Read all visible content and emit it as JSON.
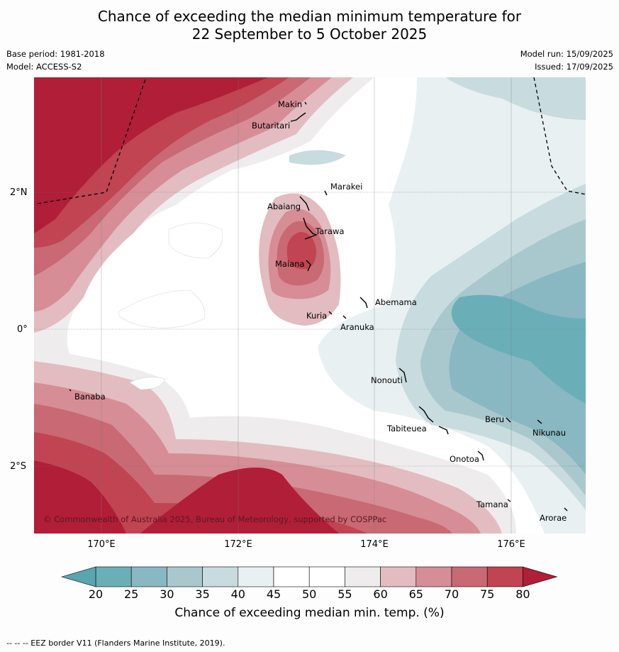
{
  "header": {
    "title_line1": "Chance of exceeding the median minimum temperature for",
    "title_line2": "22 September to 5 October 2025",
    "base_period": "Base period: 1981-2018",
    "model": "Model: ACCESS-S2",
    "model_run": "Model run: 15/09/2025",
    "issued": "Issued: 17/09/2025"
  },
  "map": {
    "lat_labels": [
      "2°N",
      "0°",
      "2°S"
    ],
    "lon_labels": [
      "170°E",
      "172°E",
      "174°E",
      "176°E"
    ],
    "places": [
      "Makin",
      "Butaritari",
      "Marakei",
      "Abaiang",
      "Tarawa",
      "Maiana",
      "Abemama",
      "Kuria",
      "Aranuka",
      "Nonouti",
      "Banaba",
      "Beru",
      "Tabiteuea",
      "Nikunau",
      "Onotoa",
      "Tamana",
      "Arorae"
    ],
    "copyright": "© Commonwealth of Australia 2025, Bureau of Meteorology, supported by COSPPac"
  },
  "colorbar": {
    "ticks": [
      "20",
      "25",
      "30",
      "35",
      "40",
      "45",
      "50",
      "55",
      "60",
      "65",
      "70",
      "75",
      "80"
    ],
    "colors": [
      "#6aaeb8",
      "#89b8c2",
      "#a9c8cd",
      "#c8dbdf",
      "#e9f0f2",
      "#ffffff",
      "#ffffff",
      "#efeced",
      "#e2bcc1",
      "#d68d96",
      "#c86973",
      "#c04451"
    ],
    "under_color": "#5aa5b0",
    "over_color": "#b01e37",
    "label": "Chance of exceeding median min. temp. (%)"
  },
  "footer": {
    "eez_note": "-- -- -- EEZ border V11 (Flanders Marine Institute, 2019)."
  }
}
